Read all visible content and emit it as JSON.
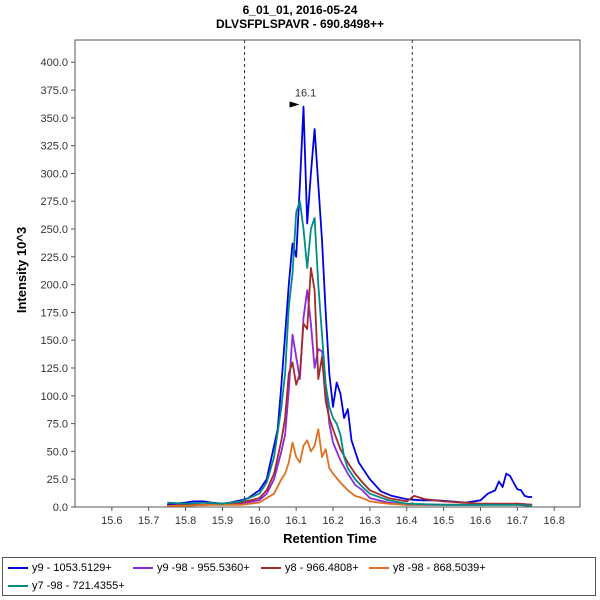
{
  "chart_data": {
    "type": "line",
    "title": "6_01_01, 2016-05-24",
    "subtitle": "DLVSFPLSPAVR - 690.8498++",
    "xlabel": "Retention Time",
    "ylabel": "Intensity 10^3",
    "xlim": [
      15.5,
      16.87
    ],
    "ylim": [
      0,
      420
    ],
    "xticks": [
      "15.6",
      "15.7",
      "15.8",
      "15.9",
      "16.0",
      "16.1",
      "16.2",
      "16.3",
      "16.4",
      "16.5",
      "16.6",
      "16.7",
      "16.8"
    ],
    "yticks": [
      "0.0",
      "25.0",
      "50.0",
      "75.0",
      "100.0",
      "125.0",
      "150.0",
      "175.0",
      "200.0",
      "225.0",
      "250.0",
      "275.0",
      "300.0",
      "325.0",
      "350.0",
      "375.0",
      "400.0"
    ],
    "grid": false,
    "integration_bounds": [
      15.96,
      16.415
    ],
    "peak_annotation": {
      "label": "16.1",
      "x": 16.12,
      "y": 362
    },
    "series": [
      {
        "name": "y9 - 1053.5129+",
        "color": "#0000e0",
        "x": [
          15.75,
          15.77,
          15.8,
          15.82,
          15.85,
          15.87,
          15.9,
          15.92,
          15.95,
          15.97,
          16.0,
          16.02,
          16.03,
          16.05,
          16.06,
          16.07,
          16.08,
          16.09,
          16.1,
          16.11,
          16.12,
          16.13,
          16.14,
          16.15,
          16.16,
          16.17,
          16.18,
          16.19,
          16.2,
          16.21,
          16.22,
          16.23,
          16.24,
          16.25,
          16.27,
          16.3,
          16.33,
          16.36,
          16.4,
          16.44,
          16.48,
          16.52,
          16.56,
          16.6,
          16.62,
          16.64,
          16.65,
          16.66,
          16.67,
          16.68,
          16.69,
          16.7,
          16.71,
          16.72,
          16.73,
          16.74
        ],
        "y": [
          2,
          3,
          4,
          5,
          5,
          4,
          3,
          4,
          6,
          8,
          15,
          25,
          40,
          70,
          110,
          155,
          200,
          237,
          225,
          290,
          360,
          255,
          300,
          340,
          290,
          240,
          175,
          120,
          90,
          112,
          102,
          80,
          88,
          60,
          40,
          25,
          14,
          10,
          7,
          6,
          6,
          5,
          4,
          6,
          12,
          15,
          23,
          18,
          30,
          28,
          22,
          16,
          15,
          10,
          9,
          9
        ]
      },
      {
        "name": "y9 -98 - 955.5360+",
        "color": "#8a2be2",
        "x": [
          15.75,
          15.8,
          15.85,
          15.9,
          15.95,
          16.0,
          16.02,
          16.04,
          16.06,
          16.07,
          16.08,
          16.09,
          16.1,
          16.11,
          16.12,
          16.13,
          16.14,
          16.15,
          16.16,
          16.17,
          16.18,
          16.19,
          16.2,
          16.22,
          16.24,
          16.26,
          16.28,
          16.3,
          16.35,
          16.4,
          16.5,
          16.6,
          16.7,
          16.74
        ],
        "y": [
          1,
          2,
          2,
          3,
          3,
          6,
          12,
          25,
          50,
          65,
          105,
          155,
          135,
          115,
          170,
          195,
          165,
          125,
          142,
          140,
          110,
          75,
          58,
          42,
          30,
          20,
          15,
          8,
          4,
          2,
          2,
          2,
          3,
          2
        ]
      },
      {
        "name": "y8 - 966.4808+",
        "color": "#a52a2a",
        "x": [
          15.75,
          15.8,
          15.85,
          15.9,
          15.95,
          16.0,
          16.02,
          16.04,
          16.06,
          16.07,
          16.08,
          16.09,
          16.1,
          16.11,
          16.12,
          16.13,
          16.14,
          16.15,
          16.16,
          16.17,
          16.18,
          16.19,
          16.2,
          16.22,
          16.24,
          16.26,
          16.28,
          16.3,
          16.35,
          16.4,
          16.42,
          16.45,
          16.5,
          16.6,
          16.7,
          16.74
        ],
        "y": [
          1,
          2,
          2,
          3,
          4,
          8,
          15,
          30,
          60,
          80,
          120,
          130,
          110,
          120,
          165,
          160,
          215,
          195,
          115,
          135,
          95,
          80,
          70,
          52,
          40,
          30,
          22,
          15,
          8,
          5,
          10,
          7,
          5,
          3,
          3,
          2
        ]
      },
      {
        "name": "y8 -98 - 868.5039+",
        "color": "#e07020",
        "x": [
          15.75,
          15.8,
          15.85,
          15.9,
          15.95,
          16.0,
          16.02,
          16.04,
          16.06,
          16.07,
          16.08,
          16.09,
          16.1,
          16.11,
          16.12,
          16.13,
          16.14,
          16.15,
          16.16,
          16.17,
          16.18,
          16.19,
          16.2,
          16.22,
          16.24,
          16.26,
          16.28,
          16.3,
          16.35,
          16.4,
          16.5,
          16.6,
          16.7,
          16.74
        ],
        "y": [
          1,
          1,
          2,
          2,
          2,
          4,
          8,
          12,
          25,
          30,
          40,
          58,
          45,
          40,
          55,
          60,
          50,
          55,
          70,
          45,
          52,
          35,
          30,
          22,
          15,
          10,
          8,
          5,
          3,
          2,
          2,
          2,
          2,
          1
        ]
      },
      {
        "name": "y7 -98 - 721.4355+",
        "color": "#008b8b",
        "x": [
          15.75,
          15.8,
          15.85,
          15.9,
          15.95,
          16.0,
          16.02,
          16.04,
          16.06,
          16.07,
          16.08,
          16.09,
          16.1,
          16.11,
          16.12,
          16.13,
          16.14,
          16.15,
          16.16,
          16.17,
          16.18,
          16.19,
          16.2,
          16.21,
          16.22,
          16.23,
          16.24,
          16.26,
          16.28,
          16.3,
          16.35,
          16.4,
          16.5,
          16.6,
          16.7,
          16.74
        ],
        "y": [
          4,
          3,
          4,
          3,
          5,
          12,
          22,
          45,
          90,
          120,
          180,
          210,
          265,
          275,
          250,
          215,
          250,
          260,
          200,
          155,
          110,
          90,
          80,
          75,
          65,
          45,
          35,
          25,
          18,
          12,
          6,
          3,
          2,
          2,
          2,
          1
        ]
      }
    ]
  }
}
